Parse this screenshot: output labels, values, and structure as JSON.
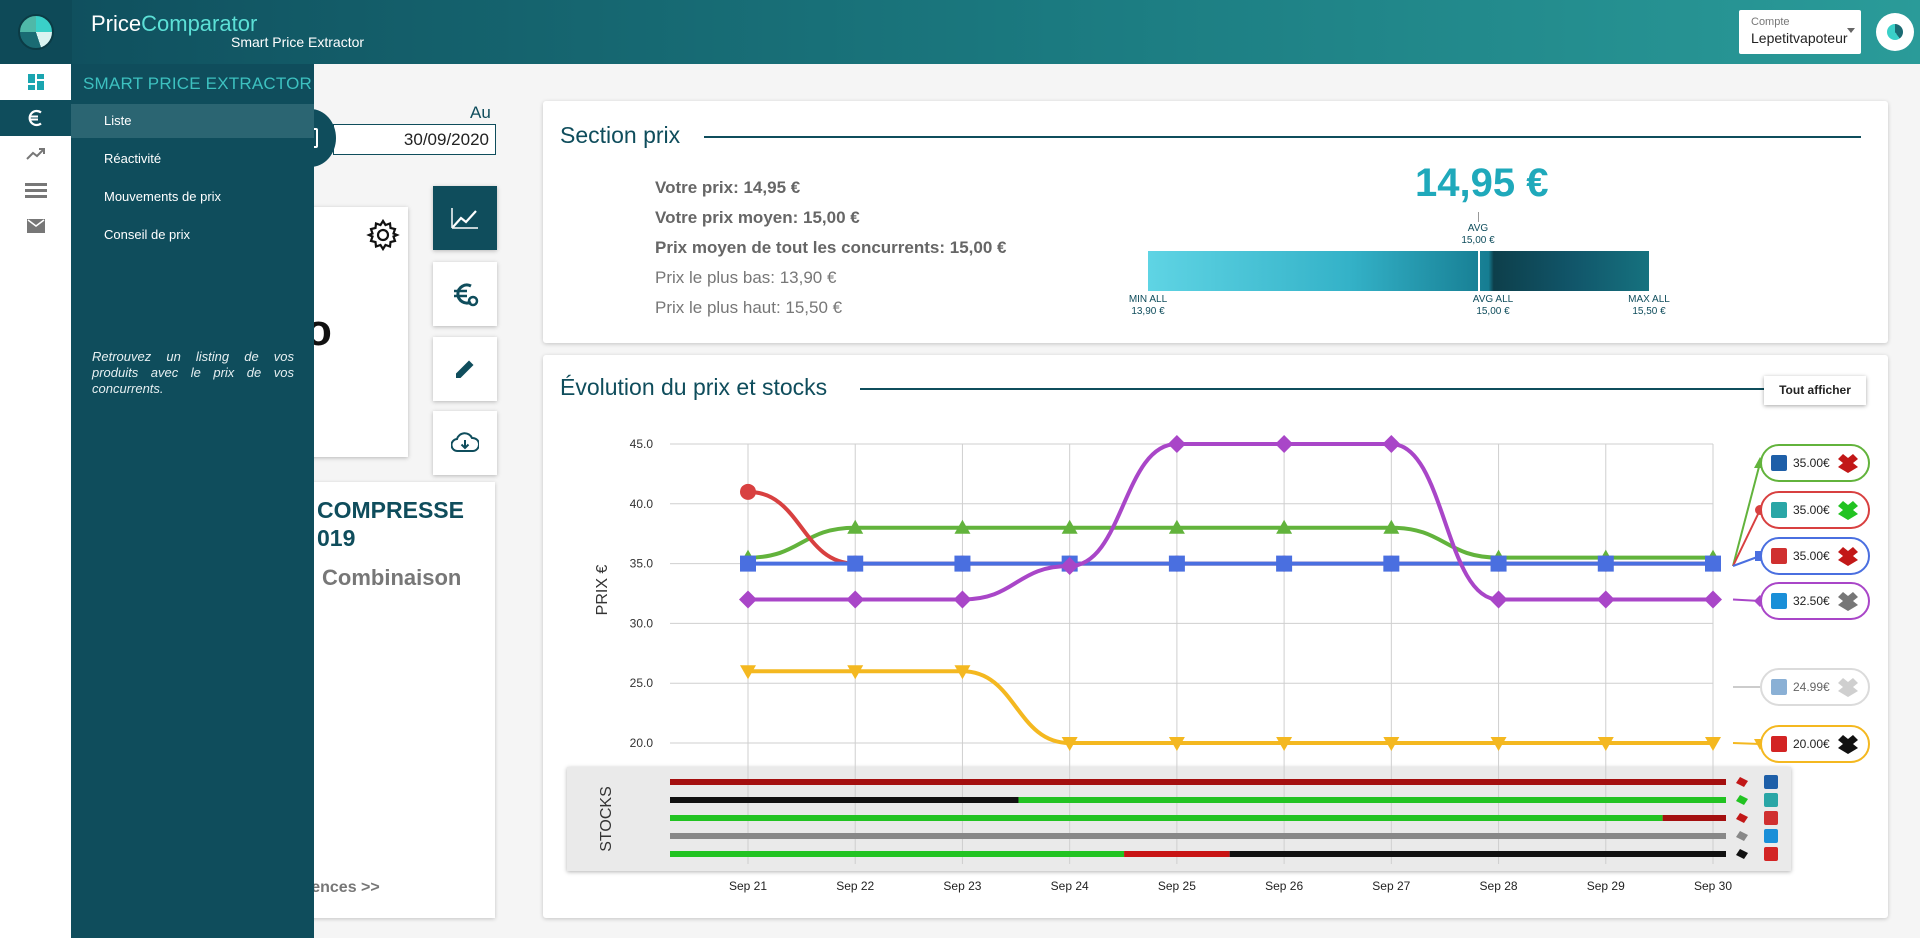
{
  "header": {
    "brand_main": "Price",
    "brand_accent": "Comparator",
    "subtitle": "Smart Price Extractor",
    "account_label": "Compte",
    "account_value": "Lepetitvapoteur"
  },
  "rail": {
    "items": [
      "dashboard-icon",
      "euro-icon",
      "trending-up-icon",
      "list-icon",
      "mail-icon"
    ],
    "active_index": 1
  },
  "drawer": {
    "title": "SMART PRICE EXTRACTOR",
    "items": [
      {
        "label": "Liste",
        "active": true
      },
      {
        "label": "Réactivité",
        "active": false
      },
      {
        "label": "Mouvements de prix",
        "active": false
      },
      {
        "label": "Conseil de prix",
        "active": false
      }
    ],
    "description": "Retrouvez un listing de vos produits avec le prix de vos concurrents."
  },
  "left": {
    "au_label": "Au",
    "date_value": "30/09/2020",
    "big_fragment": "o",
    "product_title_line1": "COMPRESSE",
    "product_title_line2": "019",
    "combination": "Combinaison",
    "link_fragment": "rences >>"
  },
  "section_prix": {
    "title": "Section prix",
    "stats": [
      {
        "text": "Votre prix: 14,95 €",
        "bold": true
      },
      {
        "text": "Votre prix moyen: 15,00 €",
        "bold": true
      },
      {
        "text": "Prix moyen de tout les concurrents: 15,00 €",
        "bold": true
      },
      {
        "text": "Prix le plus bas: 13,90 €",
        "bold": false
      },
      {
        "text": "Prix le plus haut: 15,50 €",
        "bold": false
      }
    ],
    "big_price": "14,95 €",
    "gauge": {
      "avg_top_label": "AVG",
      "avg_top_value": "15,00 €",
      "min_label": "MIN ALL",
      "min_value": "13,90 €",
      "avg_label": "AVG ALL",
      "avg_value": "15,00 €",
      "max_label": "MAX ALL",
      "max_value": "15,50 €",
      "min": 13.9,
      "avg": 15.0,
      "max": 15.5,
      "yours": 14.95
    }
  },
  "evolution": {
    "title": "Évolution du prix et stocks",
    "show_all_label": "Tout afficher",
    "stocks_label": "STOCKS",
    "legend_prices": [
      "35.00€",
      "35.00€",
      "35.00€",
      "32.50€",
      "24.99€",
      "20.00€"
    ]
  },
  "chart_data": {
    "type": "line",
    "ylabel": "PRIX €",
    "xlabel": "",
    "ylim": [
      19,
      46
    ],
    "yticks": [
      20.0,
      25.0,
      30.0,
      35.0,
      40.0,
      45.0
    ],
    "x": [
      "Sep 21",
      "Sep 22",
      "Sep 23",
      "Sep 24",
      "Sep 25",
      "Sep 26",
      "Sep 27",
      "Sep 28",
      "Sep 29",
      "Sep 30"
    ],
    "series": [
      {
        "color": "#62b33c",
        "marker": "triangle-up",
        "values": [
          35.5,
          38.0,
          38.0,
          38.0,
          38.0,
          38.0,
          38.0,
          35.5,
          35.5,
          35.5
        ]
      },
      {
        "color": "#d84040",
        "marker": "circle",
        "values": [
          41.0,
          35.0,
          35.0,
          35.0,
          35.0,
          35.0,
          35.0,
          35.0,
          35.0,
          35.0
        ]
      },
      {
        "color": "#4a6fe0",
        "marker": "square",
        "values": [
          35.0,
          35.0,
          35.0,
          35.0,
          35.0,
          35.0,
          35.0,
          35.0,
          35.0,
          35.0
        ]
      },
      {
        "color": "#a946c8",
        "marker": "diamond",
        "values": [
          32.0,
          32.0,
          32.0,
          34.8,
          45.0,
          45.0,
          45.0,
          32.0,
          32.0,
          32.0
        ]
      },
      {
        "color": "#f4b820",
        "marker": "triangle-down",
        "values": [
          26.0,
          26.0,
          26.0,
          20.0,
          20.0,
          20.0,
          20.0,
          20.0,
          20.0,
          20.0
        ]
      }
    ],
    "stocks": [
      {
        "segments": [
          {
            "to": 1.0,
            "color": "#a40f0f"
          }
        ]
      },
      {
        "segments": [
          {
            "to": 0.33,
            "color": "#111111"
          },
          {
            "to": 1.0,
            "color": "#22c322"
          }
        ]
      },
      {
        "segments": [
          {
            "to": 0.94,
            "color": "#22c322"
          },
          {
            "to": 1.0,
            "color": "#a40f0f"
          }
        ]
      },
      {
        "segments": [
          {
            "to": 1.0,
            "color": "#888888"
          }
        ]
      },
      {
        "segments": [
          {
            "to": 0.43,
            "color": "#22c322"
          },
          {
            "to": 0.53,
            "color": "#c81414"
          },
          {
            "to": 1.0,
            "color": "#111111"
          }
        ]
      }
    ]
  }
}
